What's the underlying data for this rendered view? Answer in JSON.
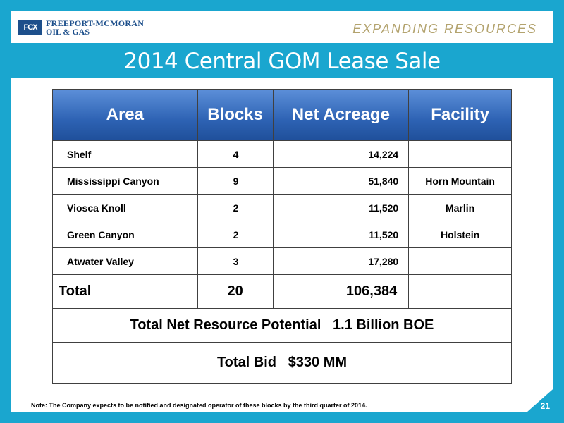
{
  "header": {
    "logo_mark": "FCX",
    "logo_line1": "FREEPORT-MCMORAN",
    "logo_line2": "OIL & GAS",
    "tagline": "EXPANDING RESOURCES"
  },
  "title": "2014 Central GOM Lease Sale",
  "table": {
    "columns": [
      "Area",
      "Blocks",
      "Net Acreage",
      "Facility"
    ],
    "rows": [
      {
        "area": "Shelf",
        "blocks": "4",
        "acreage": "14,224",
        "facility": ""
      },
      {
        "area": "Mississippi Canyon",
        "blocks": "9",
        "acreage": "51,840",
        "facility": "Horn Mountain"
      },
      {
        "area": "Viosca Knoll",
        "blocks": "2",
        "acreage": "11,520",
        "facility": "Marlin"
      },
      {
        "area": "Green Canyon",
        "blocks": "2",
        "acreage": "11,520",
        "facility": "Holstein"
      },
      {
        "area": "Atwater Valley",
        "blocks": "3",
        "acreage": "17,280",
        "facility": ""
      }
    ],
    "total": {
      "label": "Total",
      "blocks": "20",
      "acreage": "106,384"
    },
    "resource_potential": "Total Net Resource Potential   1.1 Billion BOE",
    "total_bid": "Total Bid   $330 MM"
  },
  "footer": {
    "note": "Note: The Company expects to be notified and designated operator of these blocks by the third quarter of 2014.",
    "page_number": "21"
  },
  "colors": {
    "accent": "#1aa6cf",
    "header_blue": "#2d62b3",
    "logo_blue": "#1d4f8b",
    "tagline_gold": "#b3a36e"
  }
}
